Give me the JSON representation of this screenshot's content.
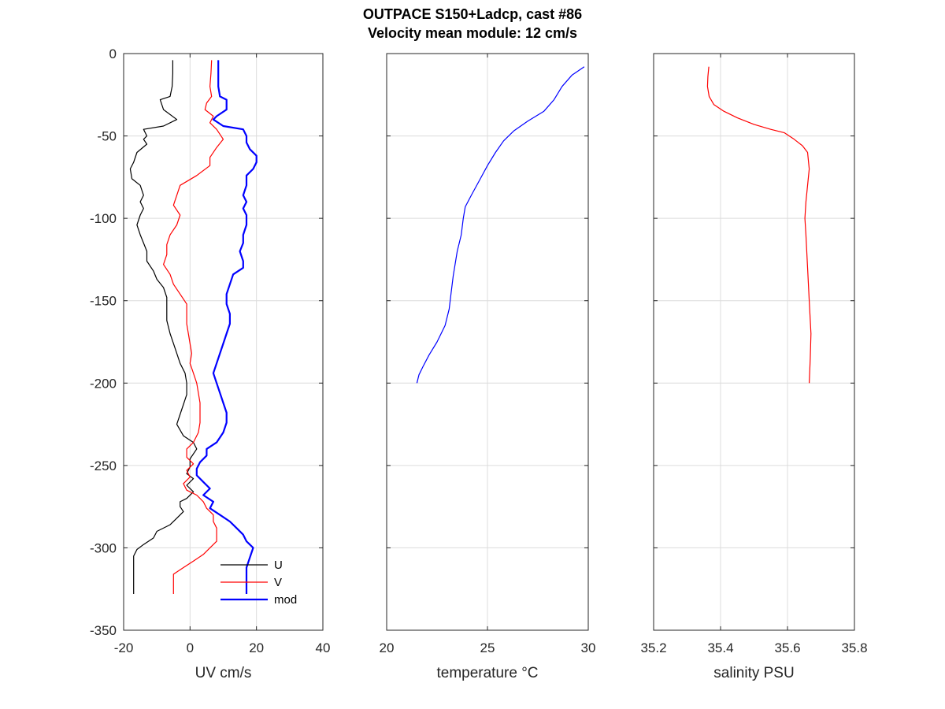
{
  "figure": {
    "title_line1": "OUTPACE S150+Ladcp, cast #86",
    "title_line2": "Velocity mean module:  12 cm/s"
  },
  "chart_data": [
    {
      "type": "line",
      "xlabel": "UV cm/s",
      "ylabel": "",
      "xlim": [
        -20,
        40
      ],
      "ylim": [
        -350,
        0
      ],
      "xticks": [
        -20,
        0,
        20,
        40
      ],
      "yticks": [
        -350,
        -300,
        -250,
        -200,
        -150,
        -100,
        -50,
        0
      ],
      "grid": true,
      "legend_position": "bottom-right",
      "series": [
        {
          "name": "U",
          "color": "#000000",
          "width": 1.2,
          "points": [
            [
              -5.2,
              -4
            ],
            [
              -5.2,
              -12
            ],
            [
              -5.4,
              -20
            ],
            [
              -6,
              -26
            ],
            [
              -9,
              -28
            ],
            [
              -8,
              -34
            ],
            [
              -4,
              -40
            ],
            [
              -8,
              -44
            ],
            [
              -14,
              -46
            ],
            [
              -13,
              -50
            ],
            [
              -14,
              -52
            ],
            [
              -13,
              -55
            ],
            [
              -16,
              -60
            ],
            [
              -17,
              -66
            ],
            [
              -18,
              -70
            ],
            [
              -17.5,
              -76
            ],
            [
              -15,
              -80
            ],
            [
              -14,
              -86
            ],
            [
              -15,
              -90
            ],
            [
              -14,
              -94
            ],
            [
              -15,
              -98
            ],
            [
              -16,
              -104
            ],
            [
              -15,
              -110
            ],
            [
              -14,
              -115
            ],
            [
              -13,
              -120
            ],
            [
              -13,
              -126
            ],
            [
              -11,
              -132
            ],
            [
              -10,
              -137
            ],
            [
              -8,
              -142
            ],
            [
              -7,
              -148
            ],
            [
              -7,
              -155
            ],
            [
              -7,
              -162
            ],
            [
              -6,
              -170
            ],
            [
              -5,
              -176
            ],
            [
              -4,
              -182
            ],
            [
              -3,
              -188
            ],
            [
              -1.5,
              -194
            ],
            [
              -1,
              -200
            ],
            [
              -1,
              -207
            ],
            [
              -2,
              -213
            ],
            [
              -3,
              -219
            ],
            [
              -4,
              -225
            ],
            [
              -2,
              -232
            ],
            [
              1,
              -236
            ],
            [
              2,
              -240
            ],
            [
              0,
              -246
            ],
            [
              0,
              -251
            ],
            [
              -1,
              -255
            ],
            [
              1,
              -258
            ],
            [
              -1,
              -262
            ],
            [
              1,
              -266
            ],
            [
              -1,
              -270
            ],
            [
              -3,
              -272
            ],
            [
              -3,
              -275
            ],
            [
              -2,
              -278
            ],
            [
              -4,
              -282
            ],
            [
              -6,
              -286
            ],
            [
              -10,
              -290
            ],
            [
              -11,
              -294
            ],
            [
              -14,
              -298
            ],
            [
              -16,
              -301
            ],
            [
              -17,
              -305
            ],
            [
              -17,
              -312
            ],
            [
              -17,
              -320
            ],
            [
              -17,
              -328
            ]
          ]
        },
        {
          "name": "V",
          "color": "#ff0000",
          "width": 1.2,
          "points": [
            [
              6.5,
              -4
            ],
            [
              6.3,
              -12
            ],
            [
              6,
              -20
            ],
            [
              6.5,
              -26
            ],
            [
              5,
              -30
            ],
            [
              4.5,
              -34
            ],
            [
              7,
              -38
            ],
            [
              6,
              -42
            ],
            [
              8,
              -46
            ],
            [
              10,
              -52
            ],
            [
              8,
              -57
            ],
            [
              6,
              -63
            ],
            [
              6,
              -68
            ],
            [
              2,
              -74
            ],
            [
              -3,
              -80
            ],
            [
              -4,
              -86
            ],
            [
              -5,
              -92
            ],
            [
              -3,
              -98
            ],
            [
              -4,
              -104
            ],
            [
              -6,
              -110
            ],
            [
              -7,
              -116
            ],
            [
              -7,
              -122
            ],
            [
              -8,
              -128
            ],
            [
              -6,
              -134
            ],
            [
              -5,
              -140
            ],
            [
              -3,
              -146
            ],
            [
              -1,
              -152
            ],
            [
              -1,
              -158
            ],
            [
              -1,
              -164
            ],
            [
              -0.5,
              -170
            ],
            [
              0,
              -176
            ],
            [
              0.5,
              -182
            ],
            [
              0,
              -188
            ],
            [
              1,
              -194
            ],
            [
              2,
              -200
            ],
            [
              2.5,
              -206
            ],
            [
              3,
              -212
            ],
            [
              3,
              -218
            ],
            [
              3,
              -224
            ],
            [
              2.5,
              -230
            ],
            [
              1,
              -236
            ],
            [
              -1,
              -240
            ],
            [
              -1,
              -245
            ],
            [
              1,
              -249
            ],
            [
              -1,
              -253
            ],
            [
              0,
              -257
            ],
            [
              -2,
              -261
            ],
            [
              -1,
              -265
            ],
            [
              2,
              -268
            ],
            [
              4,
              -272
            ],
            [
              5,
              -276
            ],
            [
              7,
              -280
            ],
            [
              7,
              -284
            ],
            [
              8,
              -288
            ],
            [
              8,
              -292
            ],
            [
              8,
              -296
            ],
            [
              6,
              -300
            ],
            [
              4,
              -304
            ],
            [
              1,
              -308
            ],
            [
              -2,
              -312
            ],
            [
              -5,
              -316
            ],
            [
              -5,
              -322
            ],
            [
              -5,
              -328
            ]
          ]
        },
        {
          "name": "mod",
          "color": "#0000ff",
          "width": 2.2,
          "points": [
            [
              8.5,
              -4
            ],
            [
              8.5,
              -12
            ],
            [
              8.5,
              -20
            ],
            [
              9,
              -26
            ],
            [
              11,
              -28
            ],
            [
              11,
              -34
            ],
            [
              8,
              -38
            ],
            [
              7,
              -40
            ],
            [
              10,
              -44
            ],
            [
              16,
              -46
            ],
            [
              17,
              -50
            ],
            [
              17,
              -54
            ],
            [
              18,
              -58
            ],
            [
              20,
              -62
            ],
            [
              20,
              -66
            ],
            [
              19,
              -70
            ],
            [
              17,
              -74
            ],
            [
              17,
              -80
            ],
            [
              16,
              -86
            ],
            [
              17,
              -90
            ],
            [
              16,
              -94
            ],
            [
              17,
              -98
            ],
            [
              17,
              -104
            ],
            [
              16,
              -110
            ],
            [
              16,
              -115
            ],
            [
              15,
              -120
            ],
            [
              16,
              -126
            ],
            [
              16,
              -130
            ],
            [
              13,
              -134
            ],
            [
              12,
              -140
            ],
            [
              11,
              -146
            ],
            [
              11,
              -152
            ],
            [
              12,
              -158
            ],
            [
              12,
              -164
            ],
            [
              11,
              -170
            ],
            [
              10,
              -176
            ],
            [
              9,
              -182
            ],
            [
              8,
              -188
            ],
            [
              7,
              -194
            ],
            [
              8,
              -200
            ],
            [
              9,
              -206
            ],
            [
              10,
              -212
            ],
            [
              11,
              -218
            ],
            [
              11,
              -224
            ],
            [
              10,
              -230
            ],
            [
              8,
              -236
            ],
            [
              5,
              -240
            ],
            [
              5,
              -244
            ],
            [
              3,
              -248
            ],
            [
              2,
              -252
            ],
            [
              2,
              -256
            ],
            [
              4,
              -260
            ],
            [
              6,
              -264
            ],
            [
              4,
              -268
            ],
            [
              7,
              -272
            ],
            [
              6,
              -276
            ],
            [
              9,
              -280
            ],
            [
              12,
              -284
            ],
            [
              14,
              -288
            ],
            [
              16,
              -292
            ],
            [
              17,
              -296
            ],
            [
              18,
              -298
            ],
            [
              19,
              -300
            ],
            [
              18,
              -306
            ],
            [
              17,
              -312
            ],
            [
              17,
              -320
            ],
            [
              17,
              -328
            ]
          ]
        }
      ]
    },
    {
      "type": "line",
      "xlabel": "temperature °C",
      "ylabel": "",
      "xlim": [
        20,
        30
      ],
      "ylim": [
        -350,
        0
      ],
      "xticks": [
        20,
        25,
        30
      ],
      "yticks": [
        -350,
        -300,
        -250,
        -200,
        -150,
        -100,
        -50,
        0
      ],
      "grid": true,
      "series": [
        {
          "color": "#0000ff",
          "width": 1.2,
          "points": [
            [
              29.8,
              -8
            ],
            [
              29.2,
              -13
            ],
            [
              28.7,
              -20
            ],
            [
              28.3,
              -28
            ],
            [
              27.8,
              -35
            ],
            [
              27,
              -41
            ],
            [
              26.3,
              -47
            ],
            [
              25.8,
              -53
            ],
            [
              25.4,
              -60
            ],
            [
              25,
              -68
            ],
            [
              24.6,
              -77
            ],
            [
              24.2,
              -86
            ],
            [
              23.9,
              -93
            ],
            [
              23.8,
              -100
            ],
            [
              23.7,
              -110
            ],
            [
              23.5,
              -120
            ],
            [
              23.3,
              -135
            ],
            [
              23.2,
              -145
            ],
            [
              23.1,
              -155
            ],
            [
              22.9,
              -165
            ],
            [
              22.5,
              -175
            ],
            [
              22.1,
              -183
            ],
            [
              21.8,
              -190
            ],
            [
              21.6,
              -195
            ],
            [
              21.5,
              -200
            ]
          ]
        }
      ]
    },
    {
      "type": "line",
      "xlabel": "salinity PSU",
      "ylabel": "",
      "xlim": [
        35.2,
        35.8
      ],
      "ylim": [
        -350,
        0
      ],
      "xticks": [
        35.2,
        35.4,
        35.6,
        35.8
      ],
      "yticks": [
        -350,
        -300,
        -250,
        -200,
        -150,
        -100,
        -50,
        0
      ],
      "grid": true,
      "series": [
        {
          "color": "#ff0000",
          "width": 1.2,
          "points": [
            [
              35.365,
              -8
            ],
            [
              35.362,
              -14
            ],
            [
              35.361,
              -20
            ],
            [
              35.366,
              -26
            ],
            [
              35.38,
              -31
            ],
            [
              35.41,
              -35
            ],
            [
              35.45,
              -39
            ],
            [
              35.5,
              -43
            ],
            [
              35.55,
              -46
            ],
            [
              35.59,
              -48
            ],
            [
              35.62,
              -52
            ],
            [
              35.645,
              -56
            ],
            [
              35.66,
              -60
            ],
            [
              35.665,
              -70
            ],
            [
              35.66,
              -80
            ],
            [
              35.655,
              -90
            ],
            [
              35.652,
              -100
            ],
            [
              35.655,
              -110
            ],
            [
              35.66,
              -130
            ],
            [
              35.665,
              -150
            ],
            [
              35.67,
              -170
            ],
            [
              35.668,
              -185
            ],
            [
              35.665,
              -200
            ]
          ]
        }
      ]
    }
  ]
}
